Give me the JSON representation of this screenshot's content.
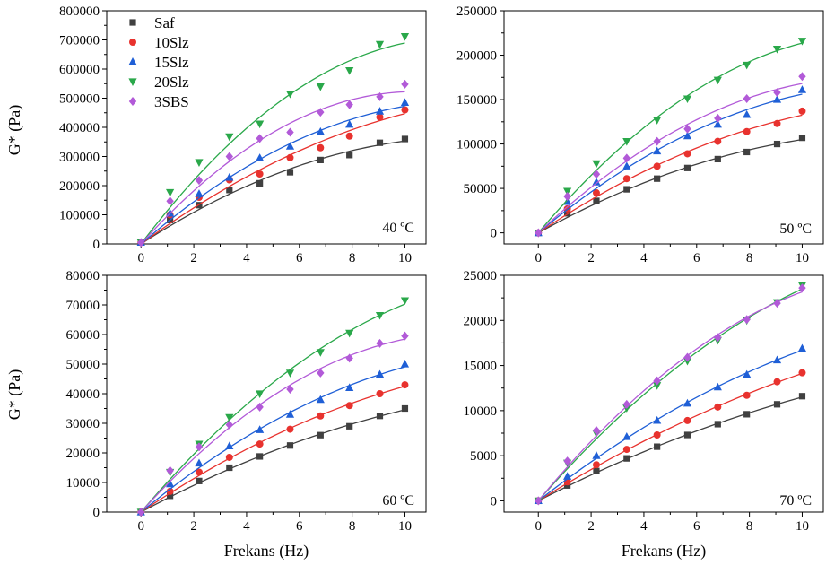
{
  "figure": {
    "ylabel": "G* (Pa)",
    "xlabel": "Frekans (Hz)"
  },
  "legend": {
    "placement": "top-left of first panel",
    "entries": [
      {
        "name": "Saf",
        "color": "#404040",
        "marker": "square"
      },
      {
        "name": "10Slz",
        "color": "#e8322e",
        "marker": "circle"
      },
      {
        "name": "15Slz",
        "color": "#1f5fd6",
        "marker": "triangle-up"
      },
      {
        "name": "20Slz",
        "color": "#2aa84a",
        "marker": "triangle-down"
      },
      {
        "name": "3SBS",
        "color": "#b25ad8",
        "marker": "diamond"
      }
    ]
  },
  "chart_data": [
    {
      "type": "scatter",
      "annotation": "40 ºC",
      "xlabel": "Frekans (Hz)",
      "ylabel": "G* (Pa)",
      "xlim": [
        -1.3,
        10.8
      ],
      "ylim": [
        0,
        800000
      ],
      "xticks": [
        0,
        2,
        4,
        6,
        8,
        10
      ],
      "yticks": [
        0,
        100000,
        200000,
        300000,
        400000,
        500000,
        600000,
        700000,
        800000
      ],
      "x": [
        0,
        1.1,
        2.2,
        3.35,
        4.5,
        5.65,
        6.8,
        7.9,
        9.05,
        10
      ],
      "series": [
        {
          "name": "Saf",
          "values": [
            5000,
            82000,
            133000,
            185000,
            208000,
            246000,
            288000,
            305000,
            347000,
            360000
          ]
        },
        {
          "name": "10Slz",
          "values": [
            5000,
            100000,
            160000,
            220000,
            240000,
            296000,
            330000,
            370000,
            435000,
            460000
          ]
        },
        {
          "name": "15Slz",
          "values": [
            5000,
            105000,
            172000,
            228000,
            295000,
            335000,
            385000,
            410000,
            455000,
            485000
          ]
        },
        {
          "name": "20Slz",
          "values": [
            5000,
            177000,
            280000,
            368000,
            412000,
            515000,
            540000,
            595000,
            685000,
            712000
          ]
        },
        {
          "name": "3SBS",
          "values": [
            5000,
            147000,
            218000,
            300000,
            362000,
            383000,
            452000,
            478000,
            505000,
            548000
          ]
        }
      ]
    },
    {
      "type": "scatter",
      "annotation": "50 ºC",
      "xlabel": "Frekans (Hz)",
      "ylabel": "G* (Pa)",
      "xlim": [
        -1.3,
        10.8
      ],
      "ylim": [
        -12500,
        250000
      ],
      "xticks": [
        0,
        2,
        4,
        6,
        8,
        10
      ],
      "yticks": [
        0,
        50000,
        100000,
        150000,
        200000,
        250000
      ],
      "x": [
        0,
        1.1,
        2.2,
        3.35,
        4.5,
        5.65,
        6.8,
        7.9,
        9.05,
        10
      ],
      "series": [
        {
          "name": "Saf",
          "values": [
            0,
            22000,
            36000,
            49000,
            61000,
            73000,
            83000,
            91000,
            100000,
            107000
          ]
        },
        {
          "name": "10Slz",
          "values": [
            0,
            27000,
            45000,
            61000,
            75000,
            89000,
            103000,
            114000,
            123000,
            137000
          ]
        },
        {
          "name": "15Slz",
          "values": [
            0,
            35000,
            57000,
            75000,
            92000,
            109000,
            122000,
            133000,
            150000,
            161000
          ]
        },
        {
          "name": "20Slz",
          "values": [
            0,
            47000,
            78000,
            103000,
            127000,
            151000,
            172000,
            189000,
            207000,
            216000
          ]
        },
        {
          "name": "3SBS",
          "values": [
            0,
            41000,
            66000,
            84000,
            103000,
            117000,
            129000,
            151000,
            158000,
            176000
          ]
        }
      ]
    },
    {
      "type": "scatter",
      "annotation": "60 ºC",
      "xlabel": "Frekans (Hz)",
      "ylabel": "G* (Pa)",
      "xlim": [
        -1.3,
        10.8
      ],
      "ylim": [
        0,
        80000
      ],
      "xticks": [
        0,
        2,
        4,
        6,
        8,
        10
      ],
      "yticks": [
        0,
        10000,
        20000,
        30000,
        40000,
        50000,
        60000,
        70000,
        80000
      ],
      "x": [
        0,
        1.1,
        2.2,
        3.35,
        4.5,
        5.65,
        6.8,
        7.9,
        9.05,
        10
      ],
      "series": [
        {
          "name": "Saf",
          "values": [
            0,
            5500,
            10500,
            15000,
            18800,
            22500,
            26000,
            29000,
            32500,
            35000
          ]
        },
        {
          "name": "10Slz",
          "values": [
            0,
            7000,
            13500,
            18500,
            23000,
            28000,
            32500,
            36000,
            40000,
            43000
          ]
        },
        {
          "name": "15Slz",
          "values": [
            0,
            9500,
            16500,
            22300,
            27800,
            33000,
            38000,
            42000,
            46500,
            50000
          ]
        },
        {
          "name": "20Slz",
          "values": [
            0,
            13500,
            23000,
            32000,
            40000,
            47000,
            54000,
            60500,
            66500,
            71500
          ]
        },
        {
          "name": "3SBS",
          "values": [
            0,
            14000,
            22000,
            29500,
            35500,
            41500,
            47000,
            52000,
            57000,
            59500
          ]
        }
      ]
    },
    {
      "type": "scatter",
      "annotation": "70 ºC",
      "xlabel": "Frekans (Hz)",
      "ylabel": "G* (Pa)",
      "xlim": [
        -1.3,
        10.8
      ],
      "ylim": [
        -1250,
        25000
      ],
      "xticks": [
        0,
        2,
        4,
        6,
        8,
        10
      ],
      "yticks": [
        0,
        5000,
        10000,
        15000,
        20000,
        25000
      ],
      "x": [
        0,
        1.1,
        2.2,
        3.35,
        4.5,
        5.65,
        6.8,
        7.9,
        9.05,
        10
      ],
      "series": [
        {
          "name": "Saf",
          "values": [
            0,
            1700,
            3300,
            4700,
            6000,
            7300,
            8500,
            9600,
            10700,
            11600
          ]
        },
        {
          "name": "10Slz",
          "values": [
            0,
            2100,
            4000,
            5700,
            7300,
            8900,
            10400,
            11700,
            13200,
            14200
          ]
        },
        {
          "name": "15Slz",
          "values": [
            0,
            2700,
            5000,
            7100,
            8900,
            10800,
            12600,
            14000,
            15600,
            16900
          ]
        },
        {
          "name": "20Slz",
          "values": [
            0,
            4200,
            7500,
            10300,
            12800,
            15500,
            17800,
            20000,
            22000,
            23900
          ]
        },
        {
          "name": "3SBS",
          "values": [
            0,
            4400,
            7800,
            10700,
            13300,
            15900,
            18100,
            20100,
            21900,
            23600
          ]
        }
      ]
    }
  ]
}
